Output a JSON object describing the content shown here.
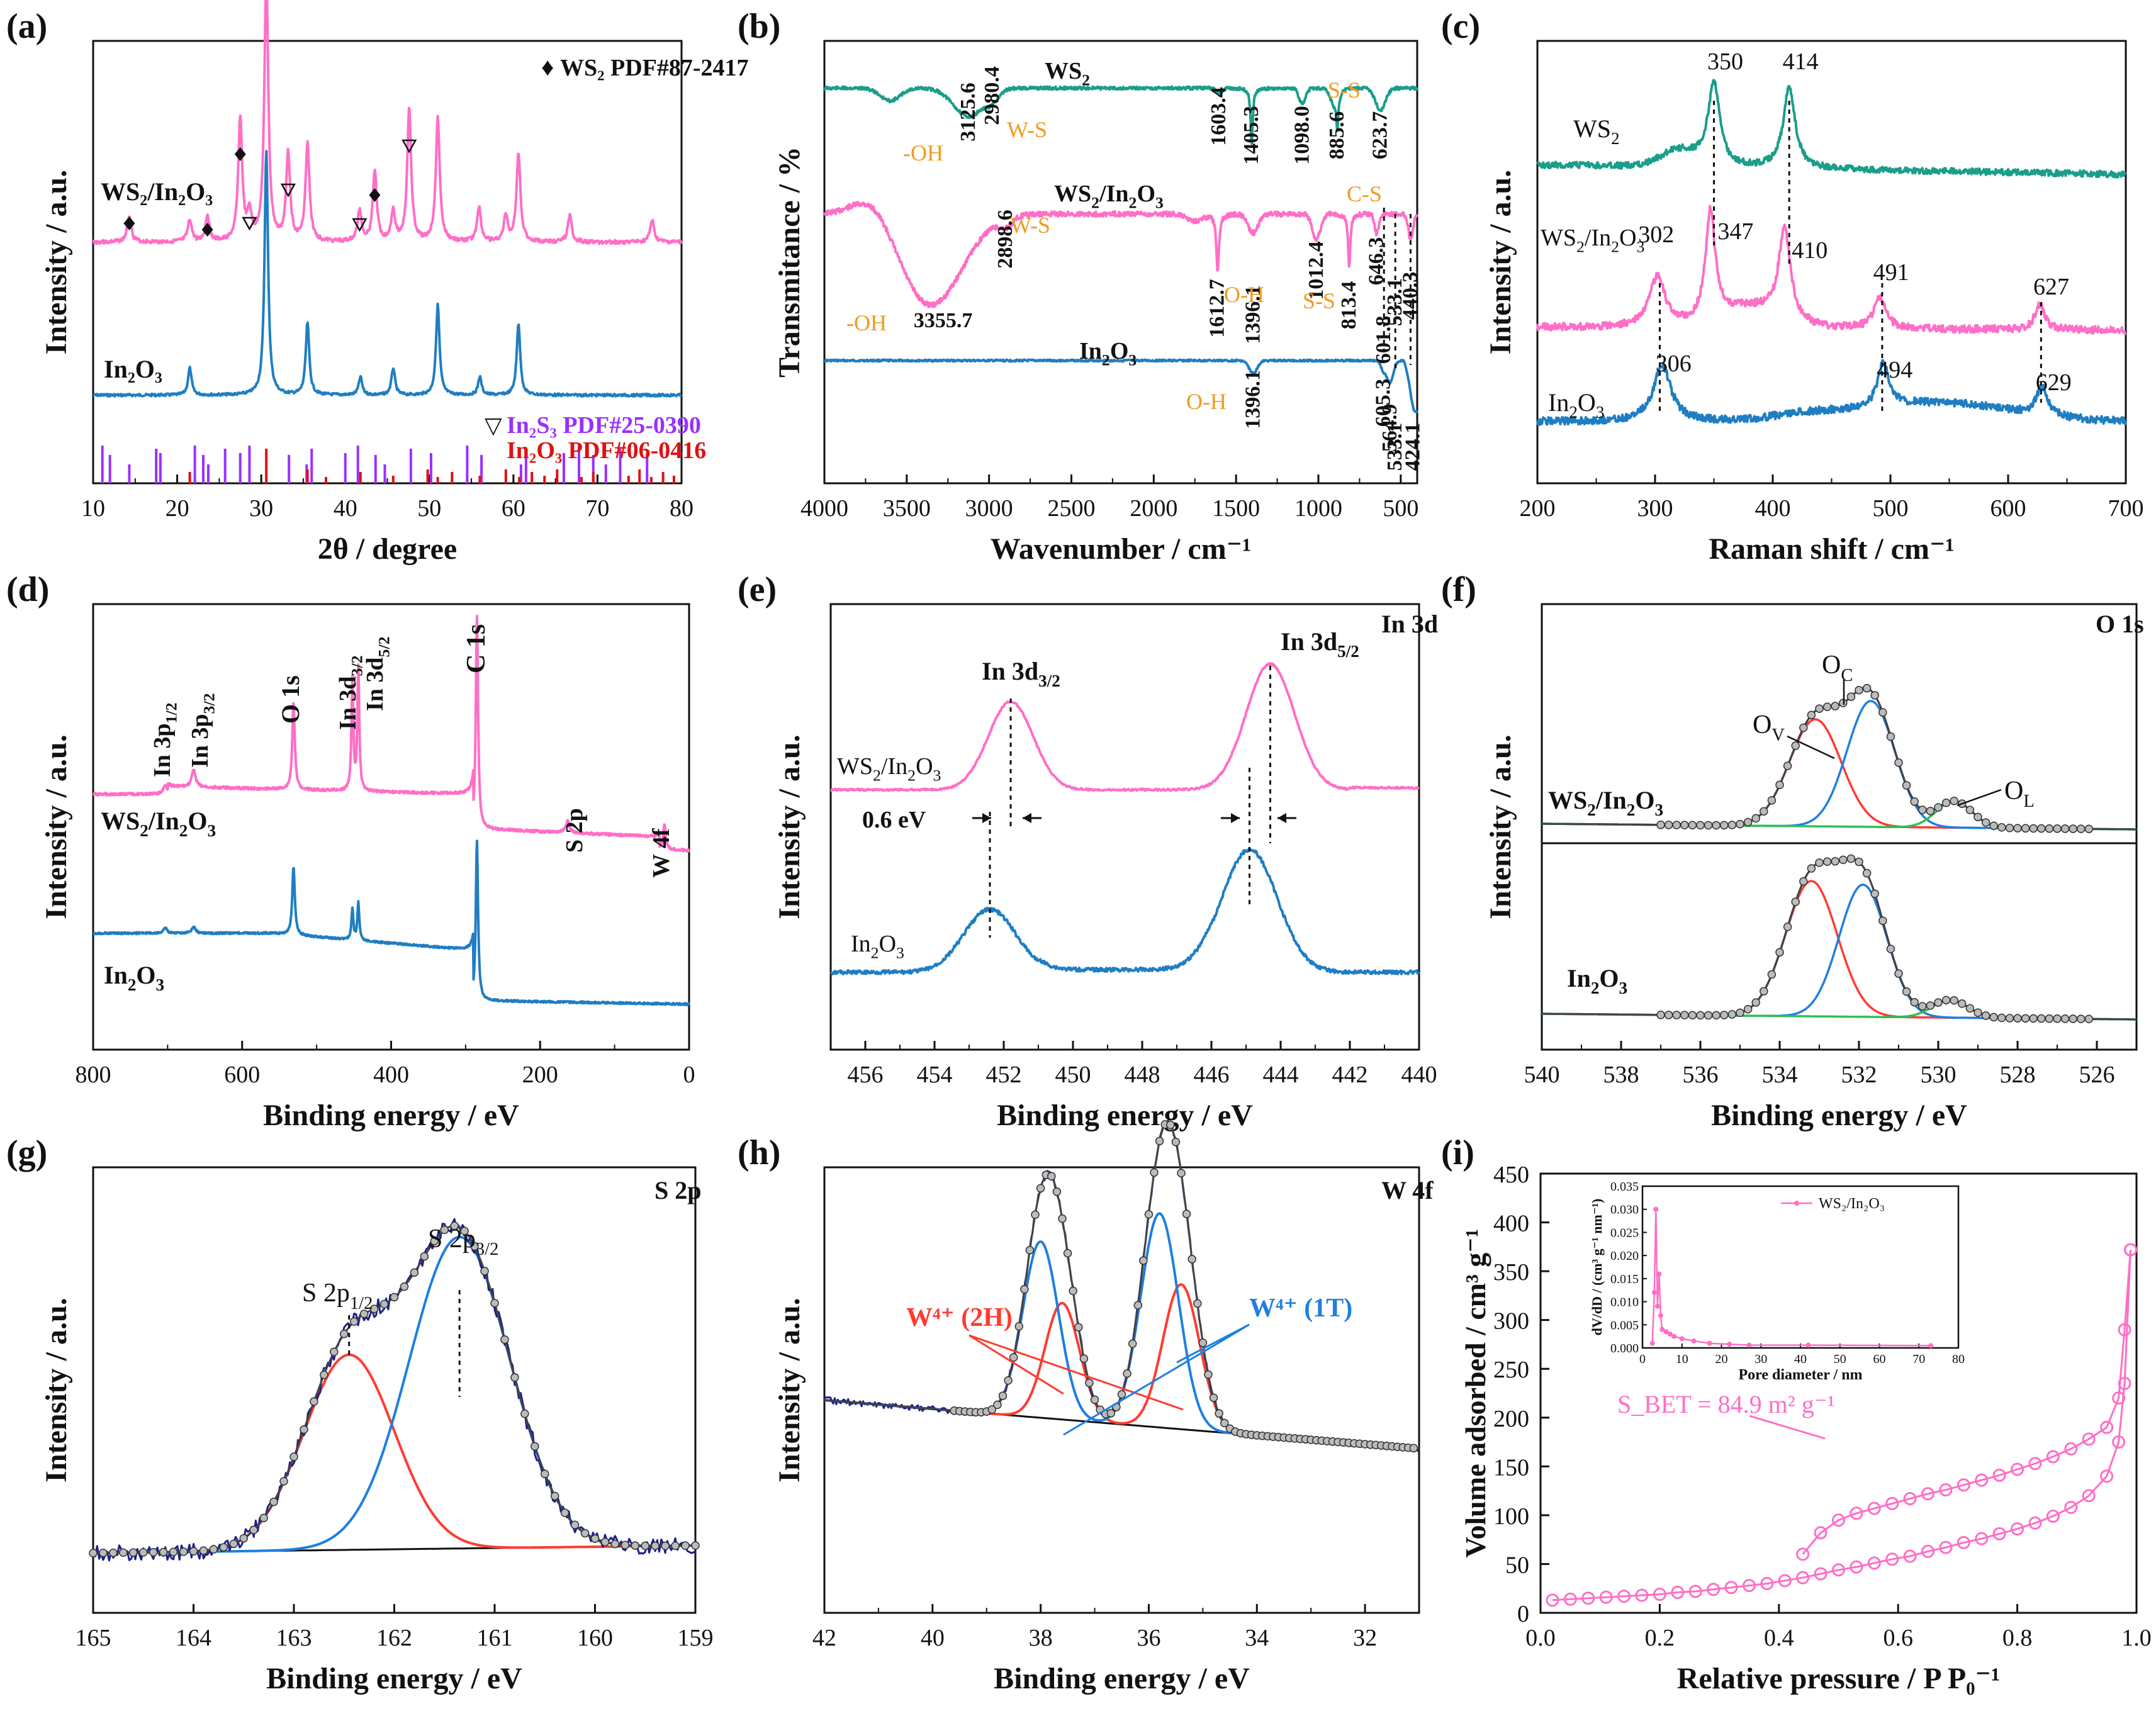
{
  "figure": {
    "title": "Characterization panels (a)–(i)"
  },
  "colors": {
    "pink": "#ff6ec7",
    "teal": "#1a9e8a",
    "blue": "#1f7ec2",
    "orange": "#f29a1f",
    "purple": "#9b30ff",
    "red": "#e01010",
    "fitred": "#ff3b30",
    "fitblue": "#1e7fe0",
    "fitgreen": "#2fbf55",
    "navy": "#1a2090",
    "black": "#111111"
  },
  "chart_data": [
    {
      "id": "a",
      "panel_label": "(a)",
      "type": "line",
      "title": "",
      "xlabel": "2θ / degree",
      "ylabel": "Intensity / a.u.",
      "xlim": [
        10,
        80
      ],
      "ylim": [
        0,
        10
      ],
      "xticks": [
        10,
        20,
        30,
        40,
        50,
        60,
        70,
        80
      ],
      "series": [
        {
          "name": "WS2/In2O3",
          "label_main": "WS",
          "label_sub": "2",
          "label_tail": "/In",
          "label_sub2": "2",
          "label_tail2": "O",
          "label_sub3": "3",
          "color": "#ff6ec7",
          "baseline": 6.3,
          "peaks": [
            [
              14.3,
              0.3
            ],
            [
              21.5,
              0.25
            ],
            [
              23.6,
              0.3
            ],
            [
              27.5,
              1.4
            ],
            [
              28.6,
              0.3
            ],
            [
              30.6,
              3.0
            ],
            [
              33.2,
              1.0
            ],
            [
              35.5,
              1.1
            ],
            [
              41.7,
              0.35
            ],
            [
              43.5,
              0.8
            ],
            [
              45.7,
              0.35
            ],
            [
              47.6,
              1.5
            ],
            [
              51.0,
              1.4
            ],
            [
              55.9,
              0.4
            ],
            [
              59.1,
              0.3
            ],
            [
              60.6,
              1.0
            ],
            [
              66.7,
              0.3
            ],
            [
              76.5,
              0.25
            ]
          ]
        },
        {
          "name": "In2O3",
          "color": "#1f7ec2",
          "baseline": 3.0,
          "peaks": [
            [
              21.5,
              0.3
            ],
            [
              30.6,
              2.7
            ],
            [
              35.5,
              0.8
            ],
            [
              41.8,
              0.2
            ],
            [
              45.7,
              0.3
            ],
            [
              51.0,
              1.0
            ],
            [
              56.0,
              0.2
            ],
            [
              60.6,
              0.8
            ]
          ]
        }
      ],
      "ref_sticks": [
        {
          "name": "In2S3 PDF#25-0390",
          "color": "#9b30ff",
          "positions": [
            11.1,
            12.0,
            14.3,
            17.5,
            18.0,
            22.1,
            23.1,
            23.7,
            25.7,
            27.5,
            28.6,
            33.3,
            35.4,
            36.0,
            40.0,
            41.5,
            43.6,
            44.7,
            47.8,
            50.2,
            54.5,
            56.2,
            60.9,
            61.5,
            66.0,
            67.8,
            69.5,
            71.0,
            72.7,
            75.9
          ]
        },
        {
          "name": "In2O3 PDF#06-0416",
          "color": "#e01010",
          "positions": [
            21.5,
            30.6,
            35.5,
            37.7,
            41.8,
            45.7,
            49.8,
            51.0,
            52.7,
            56.0,
            59.1,
            60.7,
            62.2,
            63.7,
            65.2,
            68.1,
            69.5,
            73.7,
            75.0,
            76.4,
            77.8,
            79.1
          ]
        }
      ],
      "markers": [
        {
          "symbol": "diamond",
          "x": 14.3
        },
        {
          "symbol": "diamond",
          "x": 23.6
        },
        {
          "symbol": "diamond",
          "x": 27.5
        },
        {
          "symbol": "diamond",
          "x": 43.5
        },
        {
          "symbol": "triangle",
          "x": 28.6
        },
        {
          "symbol": "triangle",
          "x": 33.2
        },
        {
          "symbol": "triangle",
          "x": 41.7
        },
        {
          "symbol": "triangle",
          "x": 47.6
        }
      ],
      "legend": {
        "ws2_label": "WS₂ PDF#87-2417",
        "ws2_symbol": "♦",
        "in2s3_label": "In₂S₃ PDF#25-0390",
        "in2s3_symbol": "▽",
        "in2o3_label": "In₂O₃ PDF#06-0416"
      },
      "text": {
        "ws2_in2o3_label": "WS₂/In₂O₃",
        "in2o3_label": "In₂O₃"
      }
    },
    {
      "id": "b",
      "panel_label": "(b)",
      "type": "line",
      "xlabel": "Wavenumber / cm⁻¹",
      "ylabel": "Transmitance / %",
      "xlim": [
        4000,
        400
      ],
      "ylim": [
        0,
        10
      ],
      "xticks": [
        4000,
        3500,
        3000,
        2500,
        2000,
        1500,
        1000,
        500
      ],
      "series": [
        {
          "name": "WS2",
          "color": "#1a9e8a",
          "label": "WS₂"
        },
        {
          "name": "WS2/In2O3",
          "color": "#ff6ec7",
          "label": "WS₂/In₂O₃"
        },
        {
          "name": "In2O3",
          "color": "#1f7ec2",
          "label": "In₂O₃"
        }
      ],
      "peak_labels": [
        "3125.6",
        "2980.4",
        "1603.4",
        "1405.3",
        "1098.0",
        "885.6",
        "623.7",
        "3355.7",
        "2898.6",
        "1612.7",
        "1396.1",
        "1012.4",
        "813.4",
        "646.3",
        "601.8",
        "533.1",
        "440.3",
        "605.3",
        "564.9",
        "533.1",
        "424.1",
        "1396.1"
      ],
      "assignments": [
        "-OH",
        "W-S",
        "S-S",
        "-OH",
        "W-S",
        "O-H",
        "S-S",
        "C-S",
        "O-H"
      ]
    },
    {
      "id": "c",
      "panel_label": "(c)",
      "type": "line",
      "xlabel": "Raman shift / cm⁻¹",
      "ylabel": "Intensity / a.u.",
      "xlim": [
        200,
        700
      ],
      "xticks": [
        200,
        300,
        400,
        500,
        600,
        700
      ],
      "series": [
        {
          "name": "WS2",
          "color": "#1a9e8a",
          "label": "WS₂",
          "peaks": [
            350,
            414
          ]
        },
        {
          "name": "WS2/In2O3",
          "color": "#ff6ec7",
          "label": "WS₂/In₂O₃",
          "peaks": [
            302,
            347,
            410,
            491,
            627
          ]
        },
        {
          "name": "In2O3",
          "color": "#1f7ec2",
          "label": "In₂O₃",
          "peaks": [
            306,
            494,
            629
          ]
        }
      ],
      "peak_labels": [
        "350",
        "414",
        "302",
        "347",
        "410",
        "491",
        "627",
        "306",
        "494",
        "629"
      ]
    },
    {
      "id": "d",
      "panel_label": "(d)",
      "type": "line",
      "xlabel": "Binding energy / eV",
      "ylabel": "Intensity / a.u.",
      "xlim": [
        800,
        0
      ],
      "xticks": [
        800,
        600,
        400,
        200,
        0
      ],
      "series": [
        {
          "name": "WS2/In2O3",
          "color": "#ff6ec7",
          "label": "WS₂/In₂O₃"
        },
        {
          "name": "In2O3",
          "color": "#1f7ec2",
          "label": "In₂O₃"
        }
      ],
      "peak_labels": [
        "In 3p1/2",
        "In 3p3/2",
        "O 1s",
        "In 3d3/2",
        "In 3d5/2",
        "C 1s",
        "S 2p",
        "W 4f"
      ]
    },
    {
      "id": "e",
      "panel_label": "(e)",
      "type": "line",
      "title": "In 3d",
      "xlabel": "Binding energy / eV",
      "ylabel": "Intensity / a.u.",
      "xlim": [
        457,
        440
      ],
      "xticks": [
        456,
        454,
        452,
        450,
        448,
        446,
        444,
        442,
        440
      ],
      "series": [
        {
          "name": "WS2/In2O3",
          "color": "#ff6ec7",
          "label": "WS₂/In₂O₃",
          "peaks": [
            451.8,
            444.3
          ]
        },
        {
          "name": "In2O3",
          "color": "#1f7ec2",
          "label": "In₂O₃",
          "peaks": [
            452.4,
            444.9
          ]
        }
      ],
      "annotations": {
        "shift": "0.6 eV",
        "d32": "In 3d3/2",
        "d52": "In 3d5/2"
      }
    },
    {
      "id": "f",
      "panel_label": "(f)",
      "type": "line",
      "title": "O 1s",
      "xlabel": "Binding energy / eV",
      "ylabel": "Intensity / a.u.",
      "xlim": [
        540,
        525
      ],
      "xticks": [
        540,
        538,
        536,
        534,
        532,
        530,
        528,
        526
      ],
      "series": [
        {
          "name": "WS2/In2O3",
          "label": "WS₂/In₂O₃",
          "components": {
            "OV": 533.1,
            "OC": 531.7,
            "OL": 529.6
          }
        },
        {
          "name": "In2O3",
          "label": "In₂O₃",
          "components": {
            "OV": 533.2,
            "OC": 531.9,
            "OL": 529.7
          }
        }
      ],
      "labels": {
        "ov": "O",
        "ov_sub": "V",
        "oc": "O",
        "oc_sub": "C",
        "ol": "O",
        "ol_sub": "L"
      }
    },
    {
      "id": "g",
      "panel_label": "(g)",
      "type": "line",
      "title": "S 2p",
      "xlabel": "Binding energy / eV",
      "ylabel": "Intensity / a.u.",
      "xlim": [
        165,
        159
      ],
      "xticks": [
        165,
        164,
        163,
        162,
        161,
        160,
        159
      ],
      "components": [
        {
          "name": "S 2p1/2",
          "center": 162.45
        },
        {
          "name": "S 2p3/2",
          "center": 161.35
        }
      ]
    },
    {
      "id": "h",
      "panel_label": "(h)",
      "type": "line",
      "title": "W 4f",
      "xlabel": "Binding energy / eV",
      "ylabel": "Intensity / a.u.",
      "xlim": [
        42,
        31
      ],
      "xticks": [
        42,
        40,
        38,
        36,
        34,
        32
      ],
      "components": [
        {
          "name": "W4+ (2H)",
          "centers": [
            37.6,
            35.4
          ]
        },
        {
          "name": "W4+ (1T)",
          "centers": [
            38.0,
            35.8
          ]
        }
      ],
      "labels": {
        "w2h": "W⁴⁺ (2H)",
        "w1t": "W⁴⁺ (1T)"
      }
    },
    {
      "id": "i",
      "panel_label": "(i)",
      "type": "line",
      "xlabel": "Relative pressure / P P₀⁻¹",
      "ylabel": "Volume adsorbed / cm³ g⁻¹",
      "xlim": [
        0,
        1.0
      ],
      "ylim": [
        0,
        450
      ],
      "xticks": [
        0.0,
        0.2,
        0.4,
        0.6,
        0.8,
        1.0
      ],
      "yticks": [
        0,
        50,
        100,
        150,
        200,
        250,
        300,
        350,
        400,
        450
      ],
      "annotation": "S_BET = 84.9 m² g⁻¹",
      "adsorption": {
        "x": [
          0.02,
          0.05,
          0.08,
          0.11,
          0.14,
          0.17,
          0.2,
          0.23,
          0.26,
          0.29,
          0.32,
          0.35,
          0.38,
          0.41,
          0.44,
          0.47,
          0.5,
          0.53,
          0.56,
          0.59,
          0.62,
          0.65,
          0.68,
          0.71,
          0.74,
          0.77,
          0.8,
          0.83,
          0.86,
          0.89,
          0.92,
          0.95,
          0.97,
          0.98,
          0.99
        ],
        "y": [
          13,
          14,
          15,
          16,
          17,
          18,
          19,
          21,
          22,
          24,
          26,
          28,
          30,
          33,
          36,
          40,
          44,
          47,
          51,
          55,
          58,
          63,
          67,
          72,
          76,
          81,
          86,
          92,
          99,
          108,
          120,
          140,
          175,
          235,
          372
        ]
      },
      "desorption": {
        "x": [
          0.99,
          0.98,
          0.97,
          0.95,
          0.92,
          0.89,
          0.86,
          0.83,
          0.8,
          0.77,
          0.74,
          0.71,
          0.68,
          0.65,
          0.62,
          0.59,
          0.56,
          0.53,
          0.5,
          0.47,
          0.44
        ],
        "y": [
          372,
          290,
          220,
          190,
          178,
          168,
          160,
          153,
          147,
          141,
          136,
          131,
          126,
          122,
          117,
          112,
          107,
          102,
          95,
          82,
          60
        ]
      },
      "inset": {
        "xlabel": "Pore diameter / nm",
        "ylabel": "dV/dD / (cm³ g⁻¹ nm⁻¹)",
        "legend": "WS₂/In₂O₃",
        "xlim": [
          0,
          80
        ],
        "ylim": [
          0,
          0.035
        ],
        "xticks": [
          0,
          10,
          20,
          30,
          40,
          50,
          60,
          70,
          80
        ],
        "yticks": [
          "0.000",
          "0.005",
          "0.010",
          "0.015",
          "0.020",
          "0.025",
          "0.030",
          "0.035"
        ],
        "x": [
          2.5,
          3.0,
          3.4,
          3.8,
          4.2,
          4.6,
          5.0,
          6,
          7,
          8,
          10,
          13,
          17,
          22,
          27,
          42,
          73
        ],
        "y": [
          0.001,
          0.012,
          0.03,
          0.009,
          0.016,
          0.007,
          0.004,
          0.0035,
          0.003,
          0.0025,
          0.002,
          0.0015,
          0.001,
          0.0008,
          0.0006,
          0.0006,
          0.0005
        ]
      }
    }
  ]
}
